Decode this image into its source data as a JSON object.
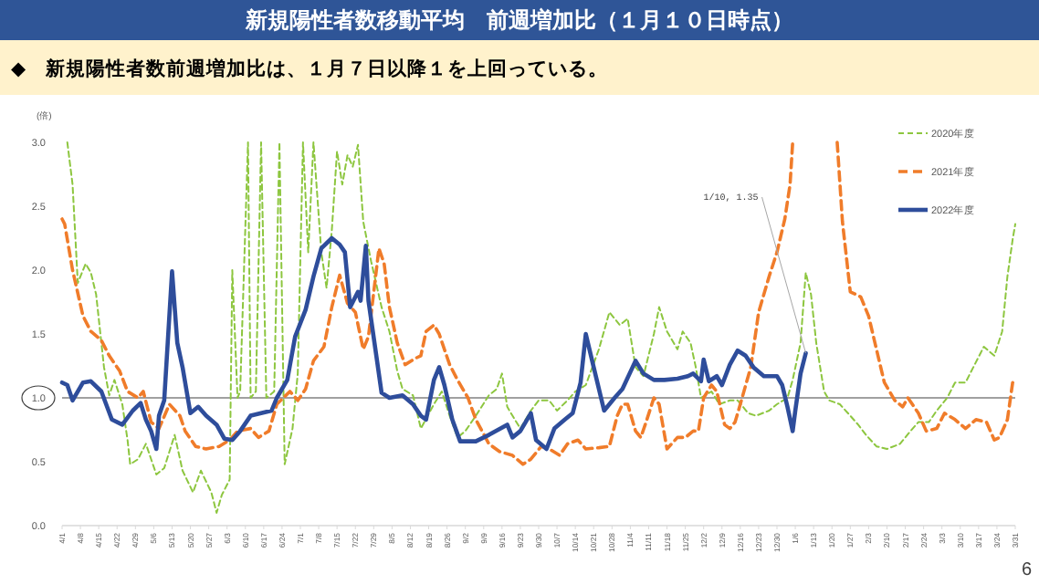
{
  "chart_data": {
    "type": "line",
    "title": "新規陽性者数移動平均　前週増加比（１月１０日時点）",
    "subtitle": "◆　新規陽性者数前週増加比は、１月７日以降１を上回っている。",
    "ylabel": "(倍)",
    "xlim": [
      "2022-04-01",
      "2023-03-31"
    ],
    "ylim": [
      0,
      3
    ],
    "yticks": [
      {
        "value": 0,
        "label": "0.0"
      },
      {
        "value": 0.5,
        "label": "0.5"
      },
      {
        "value": 1,
        "label": "1.0"
      },
      {
        "value": 1.5,
        "label": "1.5"
      },
      {
        "value": 2,
        "label": "2.0"
      },
      {
        "value": 2.5,
        "label": "2.5"
      },
      {
        "value": 3,
        "label": "3.0"
      }
    ],
    "xticks": [
      {
        "value": "2022-04-01",
        "label": "4/1"
      },
      {
        "value": "2022-04-08",
        "label": "4/8"
      },
      {
        "value": "2022-04-15",
        "label": "4/15"
      },
      {
        "value": "2022-04-22",
        "label": "4/22"
      },
      {
        "value": "2022-04-29",
        "label": "4/29"
      },
      {
        "value": "2022-05-06",
        "label": "5/6"
      },
      {
        "value": "2022-05-13",
        "label": "5/13"
      },
      {
        "value": "2022-05-20",
        "label": "5/20"
      },
      {
        "value": "2022-05-27",
        "label": "5/27"
      },
      {
        "value": "2022-06-03",
        "label": "6/3"
      },
      {
        "value": "2022-06-10",
        "label": "6/10"
      },
      {
        "value": "2022-06-17",
        "label": "6/17"
      },
      {
        "value": "2022-06-24",
        "label": "6/24"
      },
      {
        "value": "2022-07-01",
        "label": "7/1"
      },
      {
        "value": "2022-07-08",
        "label": "7/8"
      },
      {
        "value": "2022-07-15",
        "label": "7/15"
      },
      {
        "value": "2022-07-22",
        "label": "7/22"
      },
      {
        "value": "2022-07-29",
        "label": "7/29"
      },
      {
        "value": "2022-08-05",
        "label": "8/5"
      },
      {
        "value": "2022-08-12",
        "label": "8/12"
      },
      {
        "value": "2022-08-19",
        "label": "8/19"
      },
      {
        "value": "2022-08-26",
        "label": "8/26"
      },
      {
        "value": "2022-09-02",
        "label": "9/2"
      },
      {
        "value": "2022-09-09",
        "label": "9/9"
      },
      {
        "value": "2022-09-16",
        "label": "9/16"
      },
      {
        "value": "2022-09-23",
        "label": "9/23"
      },
      {
        "value": "2022-09-30",
        "label": "9/30"
      },
      {
        "value": "2022-10-07",
        "label": "10/7"
      },
      {
        "value": "2022-10-14",
        "label": "10/14"
      },
      {
        "value": "2022-10-21",
        "label": "10/21"
      },
      {
        "value": "2022-10-28",
        "label": "10/28"
      },
      {
        "value": "2022-11-04",
        "label": "11/4"
      },
      {
        "value": "2022-11-11",
        "label": "11/11"
      },
      {
        "value": "2022-11-18",
        "label": "11/18"
      },
      {
        "value": "2022-11-25",
        "label": "11/25"
      },
      {
        "value": "2022-12-02",
        "label": "12/2"
      },
      {
        "value": "2022-12-09",
        "label": "12/9"
      },
      {
        "value": "2022-12-16",
        "label": "12/16"
      },
      {
        "value": "2022-12-23",
        "label": "12/23"
      },
      {
        "value": "2022-12-30",
        "label": "12/30"
      },
      {
        "value": "2023-01-06",
        "label": "1/6"
      },
      {
        "value": "2023-01-13",
        "label": "1/13"
      },
      {
        "value": "2023-01-20",
        "label": "1/20"
      },
      {
        "value": "2023-01-27",
        "label": "1/27"
      },
      {
        "value": "2023-02-03",
        "label": "2/3"
      },
      {
        "value": "2023-02-10",
        "label": "2/10"
      },
      {
        "value": "2023-02-17",
        "label": "2/17"
      },
      {
        "value": "2023-02-24",
        "label": "2/24"
      },
      {
        "value": "2023-03-03",
        "label": "3/3"
      },
      {
        "value": "2023-03-10",
        "label": "3/10"
      },
      {
        "value": "2023-03-17",
        "label": "3/17"
      },
      {
        "value": "2023-03-24",
        "label": "3/24"
      },
      {
        "value": "2023-03-31",
        "label": "3/31"
      }
    ],
    "legend": "top right",
    "series": [
      {
        "name": "2020年度",
        "color": "#8dc63f",
        "line_style": "dashed",
        "x": [
          "2022-04-03",
          "2022-04-05",
          "2022-04-07",
          "2022-04-10",
          "2022-04-12",
          "2022-04-14",
          "2022-04-17",
          "2022-04-19",
          "2022-04-21",
          "2022-04-24",
          "2022-04-26",
          "2022-04-27",
          "2022-04-30",
          "2022-05-03",
          "2022-05-07",
          "2022-05-10",
          "2022-05-14",
          "2022-05-17",
          "2022-05-21",
          "2022-05-24",
          "2022-05-28",
          "2022-05-30",
          "2022-06-01",
          "2022-06-04",
          "2022-06-05",
          "2022-06-07",
          "2022-06-08",
          "2022-06-11",
          "2022-06-12",
          "2022-06-14",
          "2022-06-16",
          "2022-06-18",
          "2022-06-21",
          "2022-06-23",
          "2022-06-25",
          "2022-06-28",
          "2022-06-30",
          "2022-07-02",
          "2022-07-04",
          "2022-07-06",
          "2022-07-09",
          "2022-07-11",
          "2022-07-13",
          "2022-07-15",
          "2022-07-17",
          "2022-07-19",
          "2022-07-21",
          "2022-07-23",
          "2022-07-25",
          "2022-07-28",
          "2022-08-01",
          "2022-08-04",
          "2022-08-07",
          "2022-08-09",
          "2022-08-13",
          "2022-08-16",
          "2022-08-21",
          "2022-08-24",
          "2022-08-27",
          "2022-08-30",
          "2022-09-02",
          "2022-09-06",
          "2022-09-11",
          "2022-09-14",
          "2022-09-16",
          "2022-09-18",
          "2022-09-20",
          "2022-09-23",
          "2022-09-27",
          "2022-09-30",
          "2022-10-04",
          "2022-10-07",
          "2022-10-11",
          "2022-10-14",
          "2022-10-18",
          "2022-10-23",
          "2022-10-27",
          "2022-10-31",
          "2022-11-03",
          "2022-11-06",
          "2022-11-09",
          "2022-11-13",
          "2022-11-15",
          "2022-11-18",
          "2022-11-22",
          "2022-11-24",
          "2022-11-27",
          "2022-11-29",
          "2022-12-01",
          "2022-12-05",
          "2022-12-08",
          "2022-12-12",
          "2022-12-15",
          "2022-12-19",
          "2022-12-22",
          "2022-12-27",
          "2022-12-30",
          "2023-01-03",
          "2023-01-05",
          "2023-01-08",
          "2023-01-10",
          "2023-01-12",
          "2023-01-14",
          "2023-01-17",
          "2023-01-19",
          "2023-01-23",
          "2023-01-27",
          "2023-01-30",
          "2023-02-02",
          "2023-02-06",
          "2023-02-10",
          "2023-02-15",
          "2023-02-19",
          "2023-02-22",
          "2023-02-26",
          "2023-03-01",
          "2023-03-05",
          "2023-03-08",
          "2023-03-12",
          "2023-03-15",
          "2023-03-19",
          "2023-03-23",
          "2023-03-26",
          "2023-03-28",
          "2023-03-30",
          "2023-03-31"
        ],
        "values": [
          3.0,
          2.67,
          1.9,
          2.05,
          1.98,
          1.81,
          1.24,
          1.02,
          1.14,
          0.95,
          0.67,
          0.48,
          0.52,
          0.64,
          0.4,
          0.45,
          0.71,
          0.43,
          0.26,
          0.43,
          0.26,
          0.1,
          0.24,
          0.36,
          2.0,
          1.0,
          1.05,
          3.0,
          1.0,
          1.05,
          3.0,
          1.0,
          1.05,
          3.0,
          0.48,
          0.76,
          1.19,
          3.0,
          2.14,
          3.0,
          2.14,
          1.86,
          2.31,
          2.93,
          2.67,
          2.9,
          2.81,
          2.98,
          2.38,
          2.07,
          1.71,
          1.52,
          1.21,
          1.07,
          1.02,
          0.76,
          0.95,
          1.05,
          0.86,
          0.69,
          0.74,
          0.86,
          1.02,
          1.07,
          1.19,
          0.93,
          0.86,
          0.76,
          0.9,
          0.98,
          0.98,
          0.9,
          0.98,
          1.05,
          1.1,
          1.38,
          1.67,
          1.57,
          1.62,
          1.24,
          1.17,
          1.5,
          1.71,
          1.52,
          1.38,
          1.52,
          1.43,
          1.24,
          1.0,
          1.05,
          0.95,
          0.98,
          0.98,
          0.88,
          0.86,
          0.9,
          0.95,
          1.0,
          1.14,
          1.43,
          1.98,
          1.81,
          1.43,
          1.05,
          0.98,
          0.95,
          0.86,
          0.79,
          0.71,
          0.62,
          0.6,
          0.64,
          0.74,
          0.81,
          0.81,
          0.9,
          1.0,
          1.12,
          1.12,
          1.24,
          1.4,
          1.33,
          1.52,
          1.95,
          2.24,
          2.36
        ]
      },
      {
        "name": "2021年度",
        "color": "#f07c2a",
        "line_style": "dashed",
        "x": [
          "2022-04-01",
          "2022-04-02",
          "2022-04-05",
          "2022-04-09",
          "2022-04-12",
          "2022-04-16",
          "2022-04-19",
          "2022-04-23",
          "2022-04-26",
          "2022-04-30",
          "2022-05-02",
          "2022-05-05",
          "2022-05-08",
          "2022-05-12",
          "2022-05-16",
          "2022-05-18",
          "2022-05-22",
          "2022-05-26",
          "2022-05-31",
          "2022-06-04",
          "2022-06-07",
          "2022-06-12",
          "2022-06-15",
          "2022-06-19",
          "2022-06-22",
          "2022-06-27",
          "2022-06-30",
          "2022-07-03",
          "2022-07-06",
          "2022-07-10",
          "2022-07-13",
          "2022-07-16",
          "2022-07-19",
          "2022-07-22",
          "2022-07-25",
          "2022-07-27",
          "2022-07-31",
          "2022-08-02",
          "2022-08-04",
          "2022-08-07",
          "2022-08-10",
          "2022-08-14",
          "2022-08-16",
          "2022-08-18",
          "2022-08-21",
          "2022-08-23",
          "2022-08-27",
          "2022-08-30",
          "2022-09-03",
          "2022-09-06",
          "2022-09-11",
          "2022-09-15",
          "2022-09-20",
          "2022-09-24",
          "2022-09-27",
          "2022-10-01",
          "2022-10-04",
          "2022-10-08",
          "2022-10-11",
          "2022-10-15",
          "2022-10-18",
          "2022-10-23",
          "2022-10-27",
          "2022-10-30",
          "2022-11-01",
          "2022-11-03",
          "2022-11-06",
          "2022-11-08",
          "2022-11-10",
          "2022-11-13",
          "2022-11-15",
          "2022-11-18",
          "2022-11-22",
          "2022-11-25",
          "2022-11-28",
          "2022-11-30",
          "2022-12-02",
          "2022-12-05",
          "2022-12-07",
          "2022-12-10",
          "2022-12-12",
          "2022-12-14",
          "2022-12-16",
          "2022-12-20",
          "2022-12-23",
          "2022-12-27",
          "2022-12-30",
          "2023-01-02",
          "2023-01-04",
          "2023-01-05",
          "2023-01-13",
          "2023-01-22",
          "2023-01-24",
          "2023-01-27",
          "2023-01-31",
          "2023-02-03",
          "2023-02-06",
          "2023-02-09",
          "2023-02-13",
          "2023-02-16",
          "2023-02-18",
          "2023-02-22",
          "2023-02-25",
          "2023-03-01",
          "2023-03-04",
          "2023-03-08",
          "2023-03-12",
          "2023-03-16",
          "2023-03-20",
          "2023-03-23",
          "2023-03-25",
          "2023-03-28",
          "2023-03-30",
          "2023-03-31"
        ],
        "values": [
          2.4,
          2.36,
          2.0,
          1.64,
          1.52,
          1.45,
          1.33,
          1.21,
          1.05,
          1.0,
          1.05,
          0.81,
          0.76,
          0.95,
          0.86,
          0.74,
          0.62,
          0.6,
          0.62,
          0.67,
          0.74,
          0.76,
          0.69,
          0.74,
          0.95,
          1.05,
          0.98,
          1.07,
          1.29,
          1.4,
          1.71,
          1.96,
          1.74,
          1.67,
          1.38,
          1.48,
          2.17,
          2.05,
          1.71,
          1.43,
          1.26,
          1.31,
          1.33,
          1.52,
          1.57,
          1.5,
          1.26,
          1.14,
          1.0,
          0.83,
          0.64,
          0.58,
          0.55,
          0.48,
          0.52,
          0.62,
          0.6,
          0.55,
          0.64,
          0.67,
          0.6,
          0.61,
          0.62,
          0.86,
          0.95,
          0.95,
          0.74,
          0.69,
          0.81,
          1.0,
          0.95,
          0.6,
          0.69,
          0.69,
          0.74,
          0.74,
          1.0,
          1.1,
          1.05,
          0.79,
          0.76,
          0.81,
          0.95,
          1.24,
          1.67,
          1.95,
          2.14,
          2.4,
          2.67,
          3.0,
          null,
          3.0,
          2.38,
          1.83,
          1.79,
          1.64,
          1.38,
          1.12,
          0.98,
          0.93,
          1.0,
          0.88,
          0.74,
          0.76,
          0.88,
          0.83,
          0.76,
          0.83,
          0.81,
          0.67,
          0.69,
          0.83,
          1.12,
          1.1
        ]
      },
      {
        "name": "2022年度",
        "color": "#2e4d9b",
        "line_style": "solid",
        "x": [
          "2022-04-01",
          "2022-04-03",
          "2022-04-05",
          "2022-04-09",
          "2022-04-12",
          "2022-04-16",
          "2022-04-20",
          "2022-04-24",
          "2022-04-28",
          "2022-05-01",
          "2022-05-03",
          "2022-05-05",
          "2022-05-07",
          "2022-05-08",
          "2022-05-10",
          "2022-05-13",
          "2022-05-15",
          "2022-05-17",
          "2022-05-20",
          "2022-05-23",
          "2022-05-26",
          "2022-05-30",
          "2022-06-02",
          "2022-06-05",
          "2022-06-08",
          "2022-06-12",
          "2022-06-16",
          "2022-06-20",
          "2022-06-22",
          "2022-06-26",
          "2022-06-29",
          "2022-07-03",
          "2022-07-06",
          "2022-07-09",
          "2022-07-13",
          "2022-07-16",
          "2022-07-18",
          "2022-07-20",
          "2022-07-23",
          "2022-07-24",
          "2022-07-26",
          "2022-07-27",
          "2022-07-30",
          "2022-08-01",
          "2022-08-04",
          "2022-08-09",
          "2022-08-13",
          "2022-08-16",
          "2022-08-18",
          "2022-08-21",
          "2022-08-23",
          "2022-08-25",
          "2022-08-28",
          "2022-08-31",
          "2022-09-06",
          "2022-09-11",
          "2022-09-18",
          "2022-09-20",
          "2022-09-23",
          "2022-09-27",
          "2022-09-29",
          "2022-10-03",
          "2022-10-06",
          "2022-10-10",
          "2022-10-13",
          "2022-10-16",
          "2022-10-18",
          "2022-10-21",
          "2022-10-25",
          "2022-10-29",
          "2022-11-01",
          "2022-11-06",
          "2022-11-09",
          "2022-11-13",
          "2022-11-17",
          "2022-11-22",
          "2022-11-26",
          "2022-11-28",
          "2022-12-01",
          "2022-12-02",
          "2022-12-04",
          "2022-12-07",
          "2022-12-09",
          "2022-12-12",
          "2022-12-15",
          "2022-12-18",
          "2022-12-21",
          "2022-12-25",
          "2022-12-30",
          "2023-01-01",
          "2023-01-03",
          "2023-01-05",
          "2023-01-06",
          "2023-01-08",
          "2023-01-10"
        ],
        "values": [
          1.12,
          1.1,
          0.98,
          1.12,
          1.13,
          1.05,
          0.83,
          0.79,
          0.9,
          0.96,
          0.83,
          0.74,
          0.6,
          0.86,
          0.98,
          1.99,
          1.43,
          1.24,
          0.88,
          0.93,
          0.86,
          0.79,
          0.68,
          0.67,
          0.74,
          0.86,
          0.88,
          0.9,
          1.0,
          1.14,
          1.48,
          1.69,
          1.95,
          2.17,
          2.25,
          2.2,
          2.14,
          1.71,
          1.83,
          1.76,
          2.19,
          1.76,
          1.33,
          1.04,
          1.0,
          1.02,
          0.95,
          0.86,
          0.83,
          1.14,
          1.24,
          1.1,
          0.83,
          0.66,
          0.66,
          0.71,
          0.79,
          0.69,
          0.74,
          0.88,
          0.67,
          0.6,
          0.76,
          0.83,
          0.88,
          1.12,
          1.5,
          1.24,
          0.9,
          1.0,
          1.07,
          1.29,
          1.19,
          1.14,
          1.14,
          1.15,
          1.17,
          1.19,
          1.13,
          1.3,
          1.13,
          1.17,
          1.1,
          1.26,
          1.37,
          1.33,
          1.24,
          1.17,
          1.17,
          1.1,
          0.93,
          0.74,
          0.9,
          1.19,
          1.35
        ]
      }
    ],
    "ref_lines": [
      {
        "axis": "y",
        "value": 1,
        "color": "#808080"
      }
    ],
    "annotations": [
      {
        "text": "1/10, 1.35",
        "x": "2023-01-10",
        "y": 1.35
      },
      "6"
    ]
  }
}
